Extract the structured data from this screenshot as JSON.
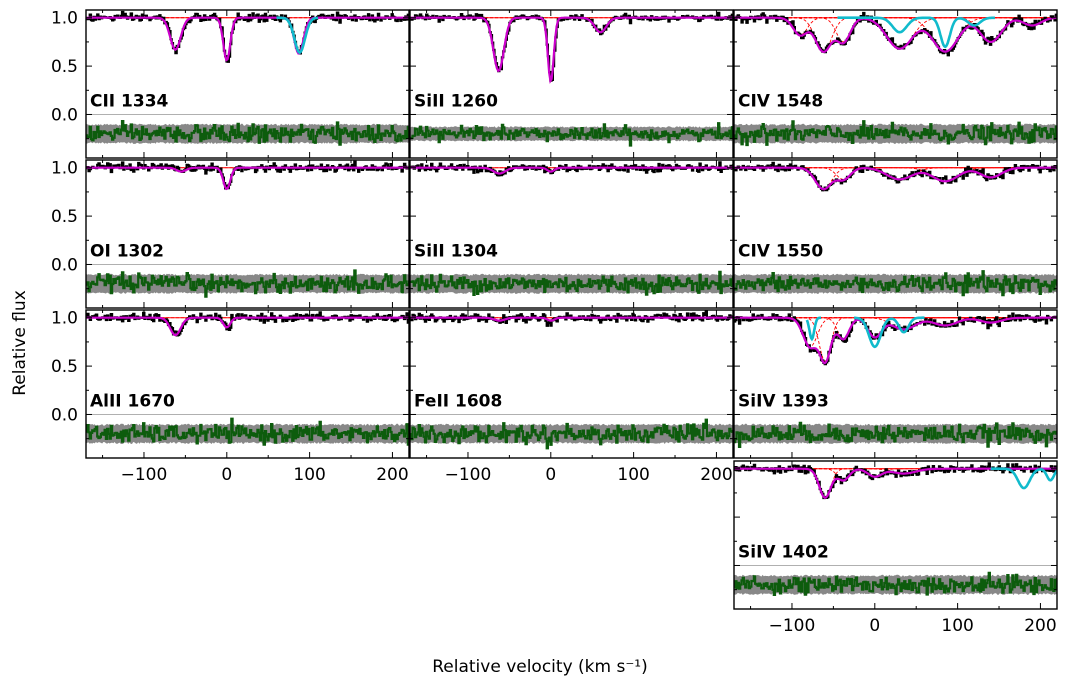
{
  "chart_data": {
    "type": "line",
    "title": "",
    "xlabel": "Relative velocity (km s⁻¹)",
    "ylabel": "Relative flux",
    "xlim": [
      -170,
      220
    ],
    "ylim": [
      -0.45,
      1.08
    ],
    "xticks": [
      -100,
      0,
      100,
      200
    ],
    "xtick_labels": [
      "−100",
      "0",
      "100",
      "200"
    ],
    "yticks": [
      0.0,
      0.5,
      1.0
    ],
    "ytick_labels": [
      "0.0",
      "0.5",
      "1.0"
    ],
    "continuum_level": 1.0,
    "residual_baseline": 0.0,
    "residual_offset": -0.2,
    "series_styles": {
      "data": "#000000",
      "model": "#cc00cc",
      "components": "#ff0000",
      "blend": "#11bbcc",
      "residual": "#0d5c0d",
      "error_band": "#888888",
      "reference": "#b0b0b0"
    },
    "panels": [
      {
        "row": 0,
        "col": 0,
        "label": "CII 1334",
        "show_yticks": true,
        "show_xticks": false,
        "noise": 0.02,
        "components": [
          {
            "v": -62,
            "depth": 0.33,
            "b": 9
          },
          {
            "v": 0,
            "depth": 0.44,
            "b": 6
          },
          {
            "v": 87,
            "depth": 0.37,
            "b": 8
          }
        ],
        "blend": {
          "range": [
            60,
            110
          ],
          "components": [
            {
              "v": 88,
              "depth": 0.36,
              "b": 9
            }
          ]
        }
      },
      {
        "row": 0,
        "col": 1,
        "label": "SiII 1260",
        "show_yticks": false,
        "show_xticks": false,
        "noise": 0.015,
        "components": [
          {
            "v": -63,
            "depth": 0.55,
            "b": 9
          },
          {
            "v": 0,
            "depth": 0.66,
            "b": 5
          },
          {
            "v": 60,
            "depth": 0.15,
            "b": 10
          }
        ]
      },
      {
        "row": 0,
        "col": 2,
        "label": "CIV 1548",
        "show_yticks": false,
        "show_xticks": false,
        "noise": 0.02,
        "components": [
          {
            "v": -90,
            "depth": 0.18,
            "b": 12
          },
          {
            "v": -62,
            "depth": 0.35,
            "b": 14
          },
          {
            "v": -38,
            "depth": 0.25,
            "b": 12
          },
          {
            "v": 30,
            "depth": 0.32,
            "b": 22
          },
          {
            "v": 85,
            "depth": 0.35,
            "b": 22
          },
          {
            "v": 140,
            "depth": 0.25,
            "b": 18
          },
          {
            "v": 190,
            "depth": 0.08,
            "b": 15
          }
        ],
        "blend": {
          "range": [
            -45,
            145
          ],
          "components": [
            {
              "v": 30,
              "depth": 0.15,
              "b": 12
            },
            {
              "v": 85,
              "depth": 0.3,
              "b": 8
            },
            {
              "v": 120,
              "depth": 0.08,
              "b": 10
            }
          ]
        }
      },
      {
        "row": 1,
        "col": 0,
        "label": "OI 1302",
        "show_yticks": true,
        "show_xticks": false,
        "noise": 0.02,
        "components": [
          {
            "v": 0,
            "depth": 0.22,
            "b": 6
          },
          {
            "v": -55,
            "depth": 0.04,
            "b": 8
          }
        ]
      },
      {
        "row": 1,
        "col": 1,
        "label": "SiII 1304",
        "show_yticks": false,
        "show_xticks": false,
        "noise": 0.02,
        "components": [
          {
            "v": -62,
            "depth": 0.06,
            "b": 10
          },
          {
            "v": 0,
            "depth": 0.04,
            "b": 6
          }
        ]
      },
      {
        "row": 1,
        "col": 2,
        "label": "CIV 1550",
        "show_yticks": false,
        "show_xticks": false,
        "noise": 0.02,
        "components": [
          {
            "v": -62,
            "depth": 0.22,
            "b": 14
          },
          {
            "v": -38,
            "depth": 0.12,
            "b": 12
          },
          {
            "v": 30,
            "depth": 0.12,
            "b": 22
          },
          {
            "v": 85,
            "depth": 0.14,
            "b": 22
          },
          {
            "v": 140,
            "depth": 0.1,
            "b": 18
          }
        ]
      },
      {
        "row": 2,
        "col": 0,
        "label": "AlII 1670",
        "show_yticks": true,
        "show_xticks": true,
        "noise": 0.02,
        "components": [
          {
            "v": -62,
            "depth": 0.18,
            "b": 9
          },
          {
            "v": 0,
            "depth": 0.1,
            "b": 6
          }
        ]
      },
      {
        "row": 2,
        "col": 1,
        "label": "FeII 1608",
        "show_yticks": false,
        "show_xticks": true,
        "noise": 0.02,
        "components": [
          {
            "v": -62,
            "depth": 0.03,
            "b": 9
          },
          {
            "v": 0,
            "depth": 0.03,
            "b": 6
          }
        ]
      },
      {
        "row": 2,
        "col": 2,
        "label": "SiIV 1393",
        "show_yticks": false,
        "show_xticks": false,
        "noise": 0.02,
        "components": [
          {
            "v": -78,
            "depth": 0.3,
            "b": 12
          },
          {
            "v": -60,
            "depth": 0.45,
            "b": 10
          },
          {
            "v": -38,
            "depth": 0.22,
            "b": 10
          },
          {
            "v": 0,
            "depth": 0.2,
            "b": 12
          },
          {
            "v": 35,
            "depth": 0.12,
            "b": 20
          },
          {
            "v": 85,
            "depth": 0.08,
            "b": 20
          },
          {
            "v": 140,
            "depth": 0.05,
            "b": 18
          }
        ],
        "blend": {
          "range": [
            -82,
            -65
          ],
          "components": [
            {
              "v": -76,
              "depth": 0.22,
              "b": 4
            }
          ]
        },
        "blend2": {
          "range": [
            -25,
            60
          ],
          "components": [
            {
              "v": 0,
              "depth": 0.3,
              "b": 10
            },
            {
              "v": 35,
              "depth": 0.15,
              "b": 8
            }
          ]
        }
      },
      {
        "row": 3,
        "col": 2,
        "label": "SiIV 1402",
        "show_yticks": false,
        "show_xticks": true,
        "noise": 0.02,
        "components": [
          {
            "v": -60,
            "depth": 0.3,
            "b": 10
          },
          {
            "v": -38,
            "depth": 0.12,
            "b": 10
          },
          {
            "v": 0,
            "depth": 0.08,
            "b": 12
          },
          {
            "v": 35,
            "depth": 0.05,
            "b": 20
          }
        ],
        "blend": {
          "range": [
            140,
            220
          ],
          "components": [
            {
              "v": 180,
              "depth": 0.2,
              "b": 10
            },
            {
              "v": 212,
              "depth": 0.12,
              "b": 6
            }
          ]
        }
      }
    ]
  }
}
